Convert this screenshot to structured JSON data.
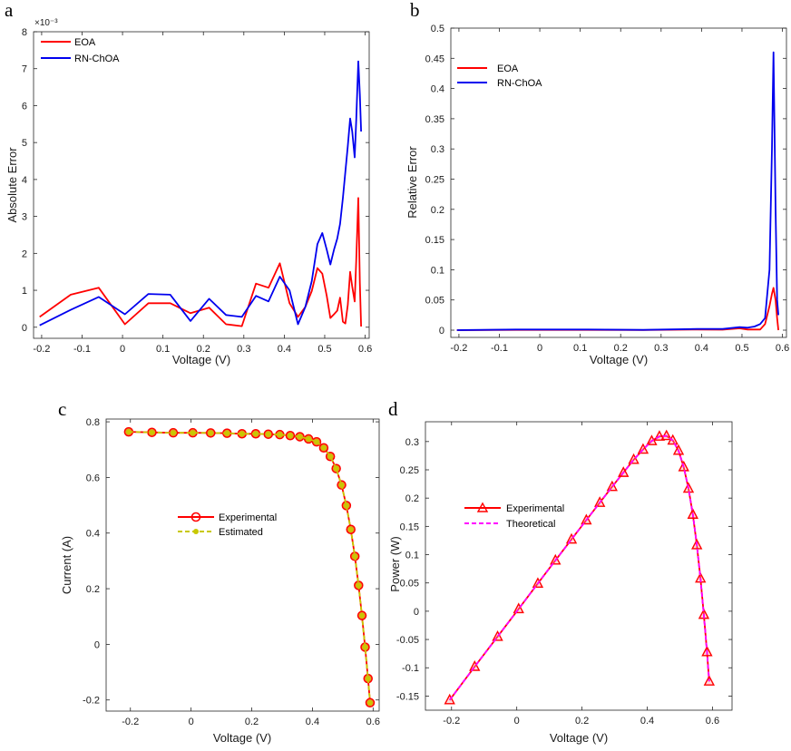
{
  "chart_data": [
    {
      "id": "a",
      "panel_label": "a",
      "type": "line",
      "xlabel": "Voltage  (V)",
      "ylabel": "Absolute Error",
      "y_exponent": "×10⁻³",
      "xlim": [
        -0.22,
        0.61
      ],
      "ylim": [
        -0.3,
        8
      ],
      "xticks": [
        -0.2,
        -0.1,
        0,
        0.1,
        0.2,
        0.3,
        0.4,
        0.5,
        0.6
      ],
      "xtick_labels": [
        "-0.2",
        "-0.1",
        "0",
        "0.1",
        "0.2",
        "0.3",
        "0.4",
        "0.5",
        "0.6"
      ],
      "yticks": [
        0,
        1,
        2,
        3,
        4,
        5,
        6,
        7,
        8
      ],
      "ytick_labels": [
        "0",
        "1",
        "2",
        "3",
        "4",
        "5",
        "6",
        "7",
        "8"
      ],
      "legend_position": "top-left",
      "series": [
        {
          "name": "EOA",
          "color": "#ff0000",
          "x": [
            -0.205,
            -0.128,
            -0.059,
            0.006,
            0.064,
            0.118,
            0.168,
            0.214,
            0.256,
            0.295,
            0.33,
            0.361,
            0.389,
            0.413,
            0.434,
            0.452,
            0.468,
            0.482,
            0.494,
            0.505,
            0.514,
            0.523,
            0.531,
            0.538,
            0.545,
            0.551,
            0.557,
            0.563,
            0.568,
            0.574,
            0.578,
            0.583,
            0.587,
            0.59
          ],
          "values": [
            0.28,
            0.88,
            1.07,
            0.08,
            0.65,
            0.65,
            0.38,
            0.53,
            0.08,
            0.03,
            1.18,
            1.07,
            1.73,
            0.65,
            0.28,
            0.55,
            0.98,
            1.6,
            1.45,
            0.85,
            0.25,
            0.35,
            0.45,
            0.8,
            0.15,
            0.1,
            0.6,
            1.5,
            1.1,
            0.7,
            1.8,
            3.5,
            1.2,
            0.02
          ]
        },
        {
          "name": "RN-ChOA",
          "color": "#0000ee",
          "x": [
            -0.205,
            -0.128,
            -0.059,
            0.006,
            0.064,
            0.118,
            0.168,
            0.214,
            0.256,
            0.295,
            0.33,
            0.361,
            0.389,
            0.413,
            0.434,
            0.452,
            0.468,
            0.482,
            0.494,
            0.505,
            0.514,
            0.523,
            0.531,
            0.538,
            0.545,
            0.551,
            0.557,
            0.563,
            0.568,
            0.574,
            0.578,
            0.583,
            0.587,
            0.59
          ],
          "values": [
            0.05,
            0.47,
            0.82,
            0.35,
            0.9,
            0.88,
            0.17,
            0.77,
            0.33,
            0.28,
            0.85,
            0.7,
            1.37,
            1.0,
            0.08,
            0.55,
            1.25,
            2.25,
            2.55,
            2.1,
            1.7,
            2.1,
            2.4,
            2.8,
            3.5,
            4.2,
            4.9,
            5.65,
            5.3,
            4.6,
            5.6,
            7.2,
            6.3,
            5.3
          ]
        }
      ]
    },
    {
      "id": "b",
      "panel_label": "b",
      "type": "line",
      "xlabel": "Voltage  (V)",
      "ylabel": "Relative Error",
      "xlim": [
        -0.22,
        0.61
      ],
      "ylim": [
        -0.012,
        0.5
      ],
      "xticks": [
        -0.2,
        -0.1,
        0,
        0.1,
        0.2,
        0.3,
        0.4,
        0.5,
        0.6
      ],
      "xtick_labels": [
        "-0.2",
        "-0.1",
        "0",
        "0.1",
        "0.2",
        "0.3",
        "0.4",
        "0.5",
        "0.6"
      ],
      "yticks": [
        0,
        0.05,
        0.1,
        0.15,
        0.2,
        0.25,
        0.3,
        0.35,
        0.4,
        0.45,
        0.5
      ],
      "ytick_labels": [
        "0",
        "0.05",
        "0.1",
        "0.15",
        "0.2",
        "0.25",
        "0.3",
        "0.35",
        "0.4",
        "0.45",
        "0.5"
      ],
      "legend_position": "top-left",
      "series": [
        {
          "name": "EOA",
          "color": "#ff0000",
          "x": [
            -0.205,
            -0.059,
            0.118,
            0.256,
            0.389,
            0.452,
            0.494,
            0.514,
            0.531,
            0.545,
            0.557,
            0.568,
            0.574,
            0.578,
            0.583,
            0.587,
            0.59
          ],
          "values": [
            0,
            0.0005,
            0.0005,
            0.0002,
            0.001,
            0.0008,
            0.003,
            0.001,
            0.001,
            0.001,
            0.01,
            0.04,
            0.06,
            0.07,
            0.05,
            0.02,
            0.0
          ]
        },
        {
          "name": "RN-ChOA",
          "color": "#0000ee",
          "x": [
            -0.205,
            -0.059,
            0.118,
            0.256,
            0.389,
            0.452,
            0.494,
            0.514,
            0.531,
            0.545,
            0.557,
            0.568,
            0.574,
            0.578,
            0.583,
            0.587,
            0.59
          ],
          "values": [
            0,
            0.001,
            0.001,
            0.0005,
            0.002,
            0.002,
            0.005,
            0.004,
            0.006,
            0.01,
            0.02,
            0.1,
            0.3,
            0.46,
            0.2,
            0.05,
            0.025
          ]
        }
      ]
    },
    {
      "id": "c",
      "panel_label": "c",
      "type": "line",
      "xlabel": "Voltage  (V)",
      "ylabel": "Current (A)",
      "xlim": [
        -0.28,
        0.62
      ],
      "ylim": [
        -0.24,
        0.81
      ],
      "xticks": [
        -0.2,
        0,
        0.2,
        0.4,
        0.6
      ],
      "xtick_labels": [
        "-0.2",
        "0",
        "0.2",
        "0.4",
        "0.6"
      ],
      "yticks": [
        -0.2,
        0,
        0.2,
        0.4,
        0.6,
        0.8
      ],
      "ytick_labels": [
        "-0.2",
        "0",
        "0.2",
        "0.4",
        "0.6",
        "0.8"
      ],
      "legend_position": "center",
      "series": [
        {
          "name": "Experimental",
          "color": "#ff0000",
          "marker": "circle",
          "x": [
            -0.2057,
            -0.1291,
            -0.0588,
            0.0057,
            0.0646,
            0.1185,
            0.1678,
            0.2132,
            0.2545,
            0.2924,
            0.3269,
            0.3585,
            0.3873,
            0.4137,
            0.4373,
            0.459,
            0.4784,
            0.496,
            0.5119,
            0.5265,
            0.5398,
            0.5521,
            0.5633,
            0.5736,
            0.5833,
            0.59
          ],
          "values": [
            0.764,
            0.762,
            0.7605,
            0.7605,
            0.76,
            0.759,
            0.757,
            0.757,
            0.7555,
            0.754,
            0.7505,
            0.7465,
            0.7385,
            0.728,
            0.7065,
            0.6755,
            0.632,
            0.573,
            0.499,
            0.413,
            0.3165,
            0.212,
            0.1035,
            -0.01,
            -0.123,
            -0.21
          ]
        },
        {
          "name": "Estimated",
          "color": "#c8c800",
          "marker": "dot",
          "x": [
            -0.2057,
            -0.1291,
            -0.0588,
            0.0057,
            0.0646,
            0.1185,
            0.1678,
            0.2132,
            0.2545,
            0.2924,
            0.3269,
            0.3585,
            0.3873,
            0.4137,
            0.4373,
            0.459,
            0.4784,
            0.496,
            0.5119,
            0.5265,
            0.5398,
            0.5521,
            0.5633,
            0.5736,
            0.5833,
            0.59
          ],
          "values": [
            0.764,
            0.762,
            0.7605,
            0.7605,
            0.76,
            0.759,
            0.757,
            0.757,
            0.7555,
            0.754,
            0.7505,
            0.7465,
            0.7385,
            0.728,
            0.7065,
            0.6755,
            0.632,
            0.573,
            0.499,
            0.413,
            0.3165,
            0.212,
            0.1035,
            -0.01,
            -0.123,
            -0.21
          ]
        }
      ]
    },
    {
      "id": "d",
      "panel_label": "d",
      "type": "line",
      "xlabel": "Voltage  (V)",
      "ylabel": "Power  (W)",
      "xlim": [
        -0.28,
        0.66
      ],
      "ylim": [
        -0.175,
        0.335
      ],
      "xticks": [
        -0.2,
        0,
        0.2,
        0.4,
        0.6
      ],
      "xtick_labels": [
        "-0.2",
        "0",
        "0.2",
        "0.4",
        "0.6"
      ],
      "yticks": [
        -0.15,
        -0.1,
        -0.05,
        0,
        0.05,
        0.1,
        0.15,
        0.2,
        0.25,
        0.3
      ],
      "ytick_labels": [
        "-0.15",
        "-0.1",
        "-0.05",
        "0",
        "0.05",
        "0.1",
        "0.15",
        "0.2",
        "0.25",
        "0.3"
      ],
      "legend_position": "center-left",
      "series": [
        {
          "name": "Experimental",
          "color": "#ff0000",
          "marker": "triangle",
          "x": [
            -0.2057,
            -0.1291,
            -0.0588,
            0.0057,
            0.0646,
            0.1185,
            0.1678,
            0.2132,
            0.2545,
            0.2924,
            0.3269,
            0.3585,
            0.3873,
            0.4137,
            0.4373,
            0.459,
            0.4784,
            0.496,
            0.5119,
            0.5265,
            0.5398,
            0.5521,
            0.5633,
            0.5736,
            0.5833,
            0.59
          ],
          "values": [
            -0.157,
            -0.098,
            -0.045,
            0.004,
            0.049,
            0.09,
            0.127,
            0.161,
            0.192,
            0.22,
            0.245,
            0.268,
            0.286,
            0.301,
            0.309,
            0.31,
            0.302,
            0.284,
            0.255,
            0.217,
            0.171,
            0.117,
            0.058,
            -0.006,
            -0.072,
            -0.124
          ]
        },
        {
          "name": "Theoretical",
          "color": "#ff00ff",
          "marker": "none",
          "dash": "dashed",
          "x": [
            -0.2057,
            -0.1291,
            -0.0588,
            0.0057,
            0.0646,
            0.1185,
            0.1678,
            0.2132,
            0.2545,
            0.2924,
            0.3269,
            0.3585,
            0.3873,
            0.4137,
            0.4373,
            0.459,
            0.4784,
            0.496,
            0.5119,
            0.5265,
            0.5398,
            0.5521,
            0.5633,
            0.5736,
            0.5833,
            0.59
          ],
          "values": [
            -0.157,
            -0.098,
            -0.045,
            0.004,
            0.049,
            0.09,
            0.127,
            0.161,
            0.192,
            0.22,
            0.245,
            0.268,
            0.286,
            0.301,
            0.309,
            0.31,
            0.302,
            0.284,
            0.255,
            0.217,
            0.171,
            0.117,
            0.058,
            -0.006,
            -0.072,
            -0.124
          ]
        }
      ]
    }
  ]
}
